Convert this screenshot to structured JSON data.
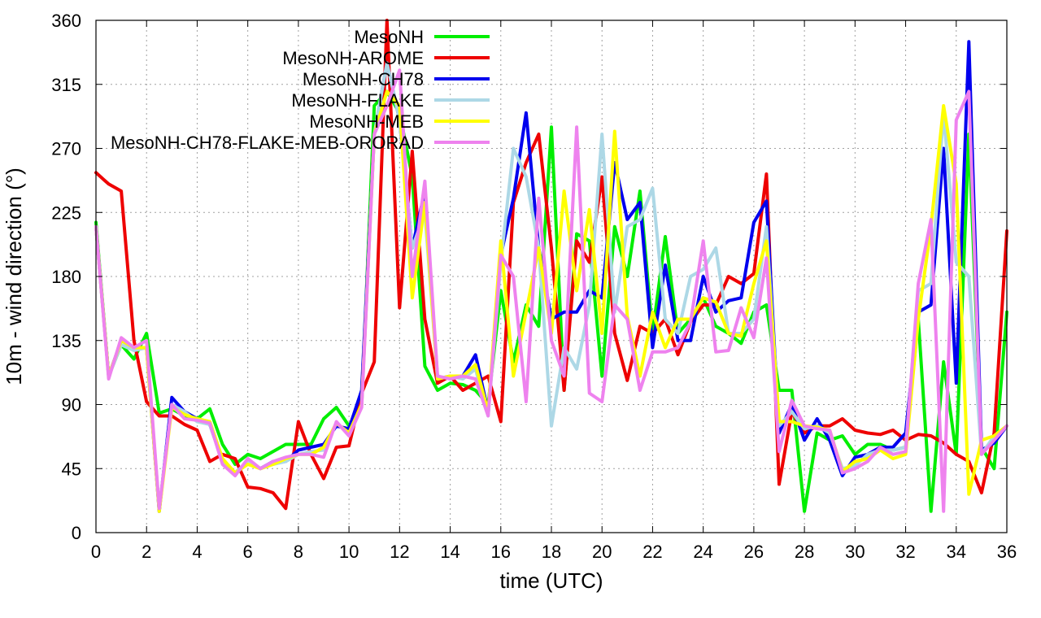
{
  "chart_data": {
    "type": "line",
    "title": "",
    "xlabel": "time (UTC)",
    "ylabel": "10m - wind direction (°)",
    "xlim": [
      0,
      36
    ],
    "ylim": [
      0,
      360
    ],
    "xticks": [
      0,
      2,
      4,
      6,
      8,
      10,
      12,
      14,
      16,
      18,
      20,
      22,
      24,
      26,
      28,
      30,
      32,
      34,
      36
    ],
    "yticks": [
      0,
      45,
      90,
      135,
      180,
      225,
      270,
      315,
      360
    ],
    "grid": true,
    "legend_position": "top-center",
    "x": [
      0,
      0.5,
      1,
      1.5,
      2,
      2.5,
      3,
      3.5,
      4,
      4.5,
      5,
      5.5,
      6,
      6.5,
      7,
      7.5,
      8,
      8.5,
      9,
      9.5,
      10,
      10.5,
      11,
      11.5,
      12,
      12.5,
      13,
      13.5,
      14,
      14.5,
      15,
      15.5,
      16,
      16.5,
      17,
      17.5,
      18,
      18.5,
      19,
      19.5,
      20,
      20.5,
      21,
      21.5,
      22,
      22.5,
      23,
      23.5,
      24,
      24.5,
      25,
      25.5,
      26,
      26.5,
      27,
      27.5,
      28,
      28.5,
      29,
      29.5,
      30,
      30.5,
      31,
      31.5,
      32,
      32.5,
      33,
      33.5,
      34,
      34.5,
      35,
      35.5,
      36
    ],
    "series": [
      {
        "name": "MesoNH",
        "color": "#00ee00",
        "values": [
          218,
          110,
          132,
          122,
          140,
          84,
          87,
          82,
          80,
          87,
          62,
          48,
          55,
          52,
          57,
          62,
          62,
          62,
          80,
          88,
          75,
          90,
          300,
          310,
          295,
          250,
          117,
          100,
          105,
          104,
          100,
          90,
          170,
          120,
          160,
          145,
          285,
          100,
          210,
          205,
          110,
          215,
          180,
          240,
          140,
          208,
          140,
          150,
          165,
          145,
          140,
          133,
          155,
          160,
          100,
          100,
          15,
          70,
          65,
          68,
          55,
          62,
          62,
          58,
          60,
          150,
          15,
          120,
          55,
          280,
          60,
          45,
          155
        ]
      },
      {
        "name": "MesoNH-AROME",
        "color": "#ee0000",
        "values": [
          253,
          245,
          240,
          135,
          92,
          82,
          82,
          76,
          72,
          50,
          55,
          52,
          32,
          31,
          28,
          17,
          78,
          55,
          38,
          60,
          61,
          98,
          120,
          360,
          158,
          268,
          150,
          105,
          110,
          100,
          105,
          110,
          78,
          232,
          260,
          280,
          200,
          100,
          205,
          190,
          250,
          140,
          107,
          145,
          140,
          150,
          125,
          148,
          160,
          160,
          180,
          175,
          182,
          252,
          34,
          85,
          70,
          75,
          75,
          80,
          72,
          70,
          69,
          72,
          65,
          69,
          68,
          63,
          55,
          50,
          28,
          70,
          212
        ]
      },
      {
        "name": "MesoNH-CH78",
        "color": "#0000ee",
        "values": [
          215,
          110,
          135,
          130,
          130,
          15,
          95,
          85,
          80,
          76,
          50,
          42,
          50,
          45,
          50,
          50,
          58,
          60,
          62,
          75,
          73,
          100,
          280,
          330,
          290,
          200,
          240,
          108,
          110,
          110,
          125,
          85,
          195,
          235,
          295,
          200,
          150,
          155,
          155,
          170,
          165,
          260,
          220,
          232,
          130,
          188,
          135,
          135,
          180,
          155,
          163,
          165,
          218,
          233,
          70,
          90,
          65,
          80,
          65,
          40,
          53,
          55,
          60,
          60,
          70,
          155,
          160,
          270,
          105,
          345,
          58,
          63,
          75
        ]
      },
      {
        "name": "MesoNH-FLAKE",
        "color": "#add8e6",
        "values": [
          215,
          110,
          132,
          128,
          130,
          17,
          90,
          85,
          78,
          76,
          50,
          42,
          50,
          45,
          48,
          50,
          55,
          57,
          58,
          77,
          70,
          90,
          280,
          330,
          290,
          200,
          225,
          108,
          110,
          108,
          115,
          82,
          190,
          270,
          250,
          200,
          75,
          130,
          115,
          160,
          280,
          155,
          215,
          220,
          242,
          150,
          140,
          180,
          185,
          200,
          140,
          140,
          150,
          215,
          75,
          85,
          73,
          75,
          70,
          45,
          47,
          55,
          58,
          58,
          60,
          170,
          175,
          295,
          190,
          180,
          55,
          68,
          75
        ]
      },
      {
        "name": "MesoNH-MEB",
        "color": "#ffff00",
        "values": [
          215,
          110,
          135,
          130,
          130,
          15,
          88,
          83,
          80,
          78,
          52,
          42,
          48,
          45,
          48,
          52,
          55,
          55,
          60,
          77,
          70,
          90,
          280,
          310,
          300,
          165,
          232,
          108,
          110,
          110,
          118,
          85,
          205,
          110,
          155,
          200,
          140,
          240,
          170,
          227,
          140,
          282,
          152,
          110,
          155,
          130,
          150,
          150,
          165,
          162,
          140,
          138,
          175,
          205,
          78,
          78,
          75,
          74,
          72,
          43,
          50,
          52,
          58,
          52,
          55,
          150,
          215,
          300,
          245,
          27,
          65,
          68,
          75
        ]
      },
      {
        "name": "MesoNH-CH78-FLAKE-MEB-ORORAD",
        "color": "#ee82ee",
        "values": [
          215,
          108,
          137,
          130,
          135,
          17,
          90,
          80,
          79,
          77,
          48,
          40,
          52,
          45,
          50,
          53,
          55,
          55,
          53,
          78,
          68,
          88,
          280,
          300,
          325,
          180,
          247,
          110,
          108,
          110,
          108,
          82,
          195,
          180,
          92,
          235,
          135,
          110,
          285,
          98,
          92,
          160,
          150,
          100,
          127,
          127,
          130,
          148,
          205,
          127,
          128,
          158,
          137,
          193,
          57,
          93,
          75,
          73,
          72,
          42,
          45,
          50,
          60,
          55,
          57,
          175,
          220,
          15,
          290,
          310,
          55,
          65,
          75
        ]
      }
    ]
  }
}
